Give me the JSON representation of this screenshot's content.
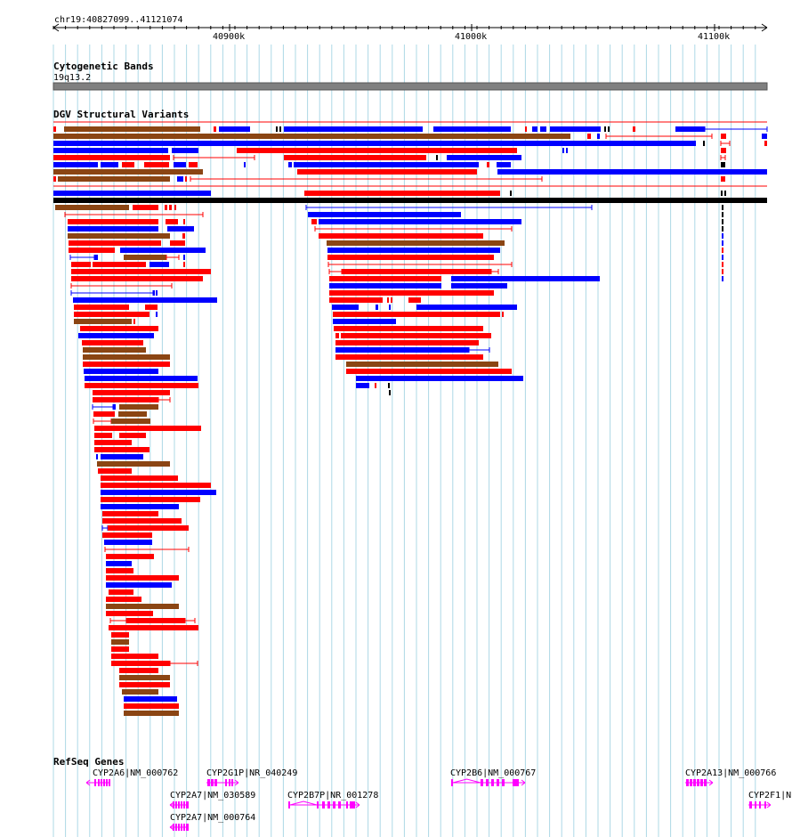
{
  "ruler": {
    "location": "chr19:40827099..41121074",
    "ticks": [
      "40900k",
      "41000k",
      "41100k"
    ],
    "start": 40827099,
    "end": 41121074
  },
  "tracks": {
    "cytoband": {
      "title": "Cytogenetic Bands",
      "band_label": "19q13.2"
    },
    "dgv": {
      "title": "DGV Structural Variants"
    },
    "refseq": {
      "title": "RefSeq Genes"
    }
  },
  "colors": {
    "gain": "#ff0000",
    "loss": "#0000ff",
    "both": "#8b4513",
    "gene": "#ff00ff",
    "grid": "#add8e6",
    "band": "#808080"
  },
  "genes": [
    {
      "label": "CYP2A6|NM_000762"
    },
    {
      "label": "CYP2G1P|NR_040249"
    },
    {
      "label": "CYP2A7|NM_030589"
    },
    {
      "label": "CYP2A7|NM_000764"
    },
    {
      "label": "CYP2B7P|NR_001278"
    },
    {
      "label": "CYP2B6|NM_000767"
    },
    {
      "label": "CYP2A13|NM_000766"
    },
    {
      "label": "CYP2F1|N"
    }
  ]
}
